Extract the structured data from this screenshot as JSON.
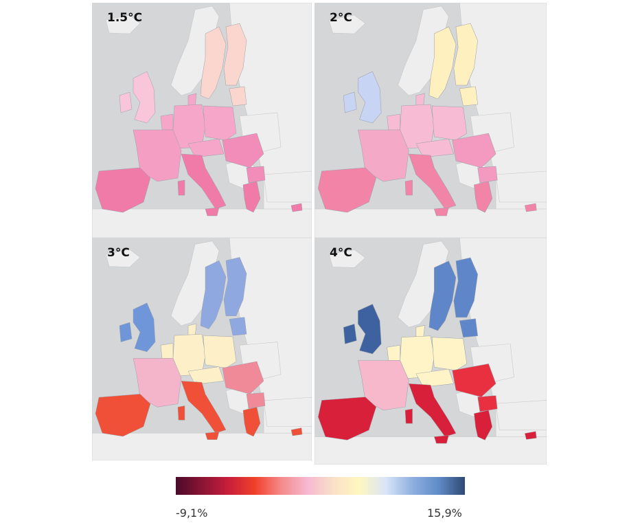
{
  "panels": [
    {
      "label": "1.5°C",
      "scenario": "1.5C"
    },
    {
      "label": "2°C",
      "scenario": "2C"
    },
    {
      "label": "3°C",
      "scenario": "3C"
    },
    {
      "label": "4°C",
      "scenario": "4C"
    }
  ],
  "legend": {
    "min_label": "-9,1%",
    "max_label": "15,9%",
    "min_value": -9.1,
    "max_value": 15.9,
    "colors": [
      "#4a0a2a",
      "#8a1535",
      "#c81e3a",
      "#f0402a",
      "#f48a8a",
      "#f6b8d0",
      "#fae0c8",
      "#fff7c0",
      "#d8e4f8",
      "#8fb0e0",
      "#5f8bc8",
      "#2f4a72"
    ]
  },
  "colors": {
    "sea": "#d4d6d8",
    "land_outside": "#eeeeee",
    "border": "#9aa0a8"
  }
}
